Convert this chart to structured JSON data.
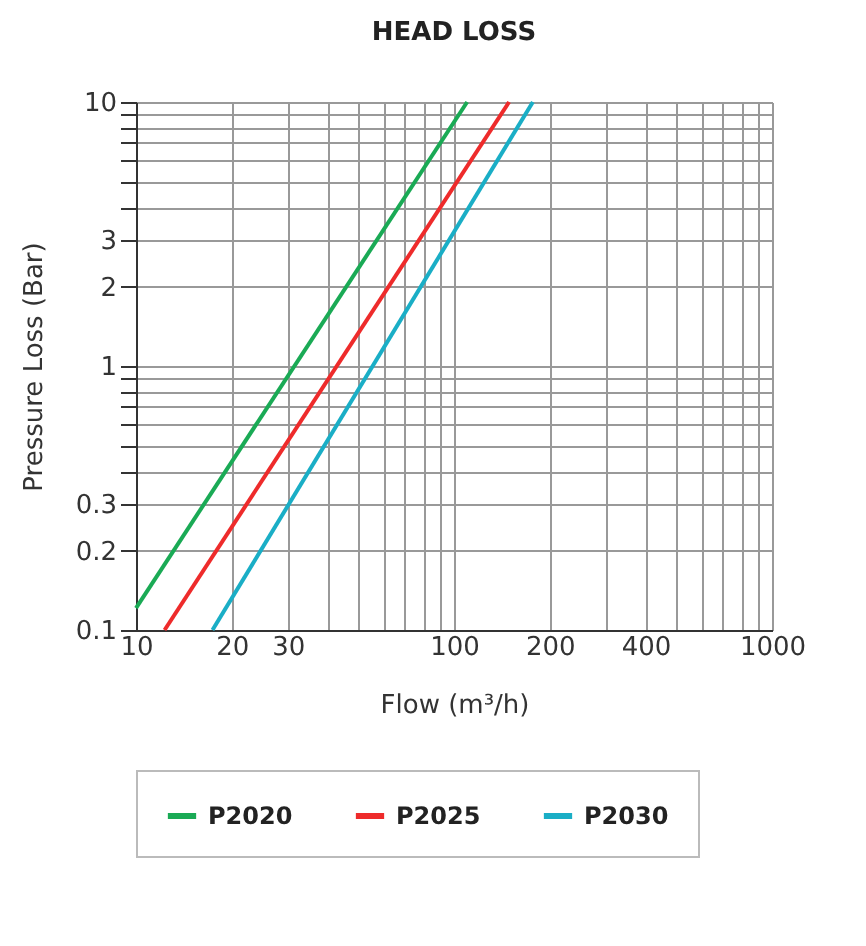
{
  "chart_data": {
    "type": "line",
    "title": "HEAD LOSS",
    "xlabel": "Flow (m³/h)",
    "ylabel": "Pressure Loss (Bar)",
    "log": "xy",
    "grid": true,
    "legend": "bottom",
    "marker": "none",
    "line_style": "solid",
    "xlim": [
      10,
      1000
    ],
    "ylim": [
      0.1,
      10
    ],
    "xticks": [
      10,
      20,
      30,
      {
        "value": 40,
        "label": null
      },
      {
        "value": 50,
        "label": null
      },
      {
        "value": 60,
        "label": null
      },
      {
        "value": 70,
        "label": null
      },
      {
        "value": 80,
        "label": null
      },
      {
        "value": 90,
        "label": null
      },
      100,
      200,
      {
        "value": 300,
        "label": null
      },
      400,
      {
        "value": 500,
        "label": null
      },
      {
        "value": 600,
        "label": null
      },
      {
        "value": 700,
        "label": null
      },
      {
        "value": 800,
        "label": null
      },
      {
        "value": 900,
        "label": null
      },
      1000
    ],
    "yticks": [
      0.1,
      0.2,
      0.3,
      {
        "value": 0.4,
        "label": null
      },
      {
        "value": 0.5,
        "label": null
      },
      {
        "value": 0.6,
        "label": null
      },
      {
        "value": 0.7,
        "label": null
      },
      {
        "value": 0.8,
        "label": null
      },
      {
        "value": 0.9,
        "label": null
      },
      1,
      2,
      3,
      {
        "value": 4,
        "label": null
      },
      {
        "value": 5,
        "label": null
      },
      {
        "value": 6,
        "label": null
      },
      {
        "value": 7,
        "label": null
      },
      {
        "value": 8,
        "label": null
      },
      {
        "value": 9,
        "label": null
      },
      10
    ],
    "series": [
      {
        "name": "P2020",
        "color": "#1aaa55",
        "x": [
          10,
          110
        ],
        "values": [
          0.121,
          10
        ]
      },
      {
        "name": "P2025",
        "color": "#ee2b2b",
        "x": [
          12.3,
          149
        ],
        "values": [
          0.1,
          10
        ]
      },
      {
        "name": "P2030",
        "color": "#1aaec6",
        "x": [
          17.4,
          177
        ],
        "values": [
          0.1,
          10
        ]
      }
    ]
  }
}
